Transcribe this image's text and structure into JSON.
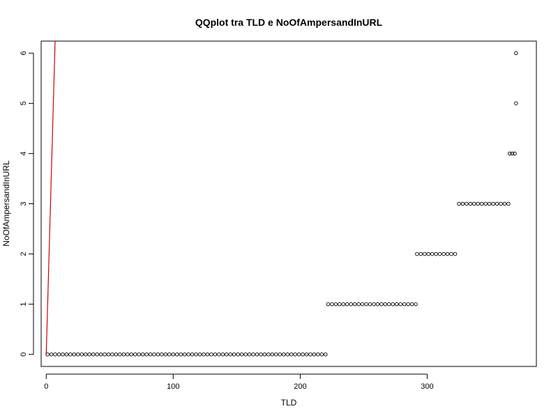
{
  "chart_data": {
    "type": "scatter",
    "title": "QQplot tra TLD e NoOfAmpersandInURL",
    "xlabel": "TLD",
    "ylabel": "NoOfAmpersandInURL",
    "xlim": [
      -4,
      386
    ],
    "ylim": [
      -0.24,
      6.24
    ],
    "x_ticks": [
      0,
      100,
      200,
      300
    ],
    "y_ticks": [
      0,
      1,
      2,
      3,
      4,
      5,
      6
    ],
    "grid": false,
    "legend": "none",
    "point_groups": [
      {
        "y": 0,
        "x_start": 1,
        "x_end": 221,
        "step": 3
      },
      {
        "y": 1,
        "x_start": 222,
        "x_end": 291,
        "step": 3
      },
      {
        "y": 2,
        "x_start": 292,
        "x_end": 324,
        "step": 3
      },
      {
        "y": 3,
        "x_start": 325,
        "x_end": 364,
        "step": 3
      },
      {
        "y": 4,
        "x_start": 365,
        "x_end": 370,
        "step": 2
      }
    ],
    "extra_points": [
      {
        "x": 370,
        "y": 5
      },
      {
        "x": 370,
        "y": 6
      }
    ],
    "reference_line": {
      "x": [
        0,
        7
      ],
      "y": [
        0,
        6.24
      ],
      "color": "#cc0000"
    },
    "point_color": "#000000"
  }
}
